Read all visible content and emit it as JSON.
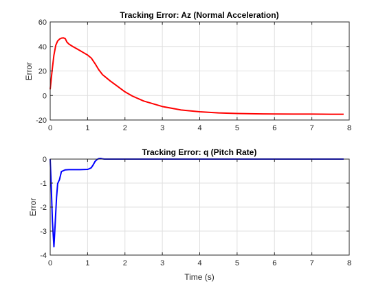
{
  "chart_data": [
    {
      "type": "line",
      "title": "Tracking Error: Az (Normal Acceleration)",
      "xlabel": "",
      "ylabel": "Error",
      "xlim": [
        0,
        8
      ],
      "ylim": [
        -20,
        60
      ],
      "xticks": [
        0,
        1,
        2,
        3,
        4,
        5,
        6,
        7,
        8
      ],
      "yticks": [
        -20,
        0,
        20,
        40,
        60
      ],
      "grid": true,
      "series": [
        {
          "color": "#ff0000",
          "x": [
            0,
            0.05,
            0.1,
            0.15,
            0.2,
            0.25,
            0.3,
            0.35,
            0.4,
            0.45,
            0.5,
            0.6,
            0.7,
            0.8,
            0.9,
            1.0,
            1.1,
            1.2,
            1.3,
            1.4,
            1.5,
            1.6,
            1.8,
            2.0,
            2.2,
            2.5,
            3.0,
            3.5,
            4.0,
            4.5,
            5.0,
            5.5,
            6.0,
            6.5,
            7.0,
            7.5,
            7.85
          ],
          "y": [
            5,
            20,
            33,
            41,
            44.5,
            46,
            46.8,
            47,
            46.5,
            43.5,
            42,
            40,
            38.3,
            36.6,
            34.8,
            33,
            30.5,
            26,
            21,
            17,
            14.5,
            12,
            7.5,
            3,
            -0.5,
            -4.5,
            -9,
            -11.8,
            -13.3,
            -14.2,
            -14.7,
            -15,
            -15.1,
            -15.2,
            -15.2,
            -15.3,
            -15.3
          ]
        }
      ]
    },
    {
      "type": "line",
      "title": "Tracking Error: q (Pitch Rate)",
      "xlabel": "Time (s)",
      "ylabel": "Error",
      "xlim": [
        0,
        8
      ],
      "ylim": [
        -4,
        0
      ],
      "xticks": [
        0,
        1,
        2,
        3,
        4,
        5,
        6,
        7,
        8
      ],
      "yticks": [
        -4,
        -3,
        -2,
        -1,
        0
      ],
      "grid": true,
      "series": [
        {
          "color": "#0000ff",
          "x": [
            0,
            0.03,
            0.06,
            0.1,
            0.13,
            0.17,
            0.2,
            0.25,
            0.3,
            0.4,
            0.5,
            0.6,
            0.8,
            1.0,
            1.05,
            1.1,
            1.15,
            1.2,
            1.25,
            1.3,
            1.35,
            1.4,
            1.45,
            1.5,
            2.0,
            3.0,
            4.0,
            5.0,
            6.0,
            7.0,
            7.85
          ],
          "y": [
            0,
            -1.2,
            -2.6,
            -3.65,
            -2.8,
            -1.6,
            -1.02,
            -0.85,
            -0.52,
            -0.45,
            -0.44,
            -0.44,
            -0.44,
            -0.43,
            -0.4,
            -0.36,
            -0.24,
            -0.1,
            -0.02,
            0.02,
            0.03,
            0.01,
            0,
            0,
            0,
            0,
            0,
            0,
            0,
            0,
            0
          ]
        }
      ]
    }
  ]
}
